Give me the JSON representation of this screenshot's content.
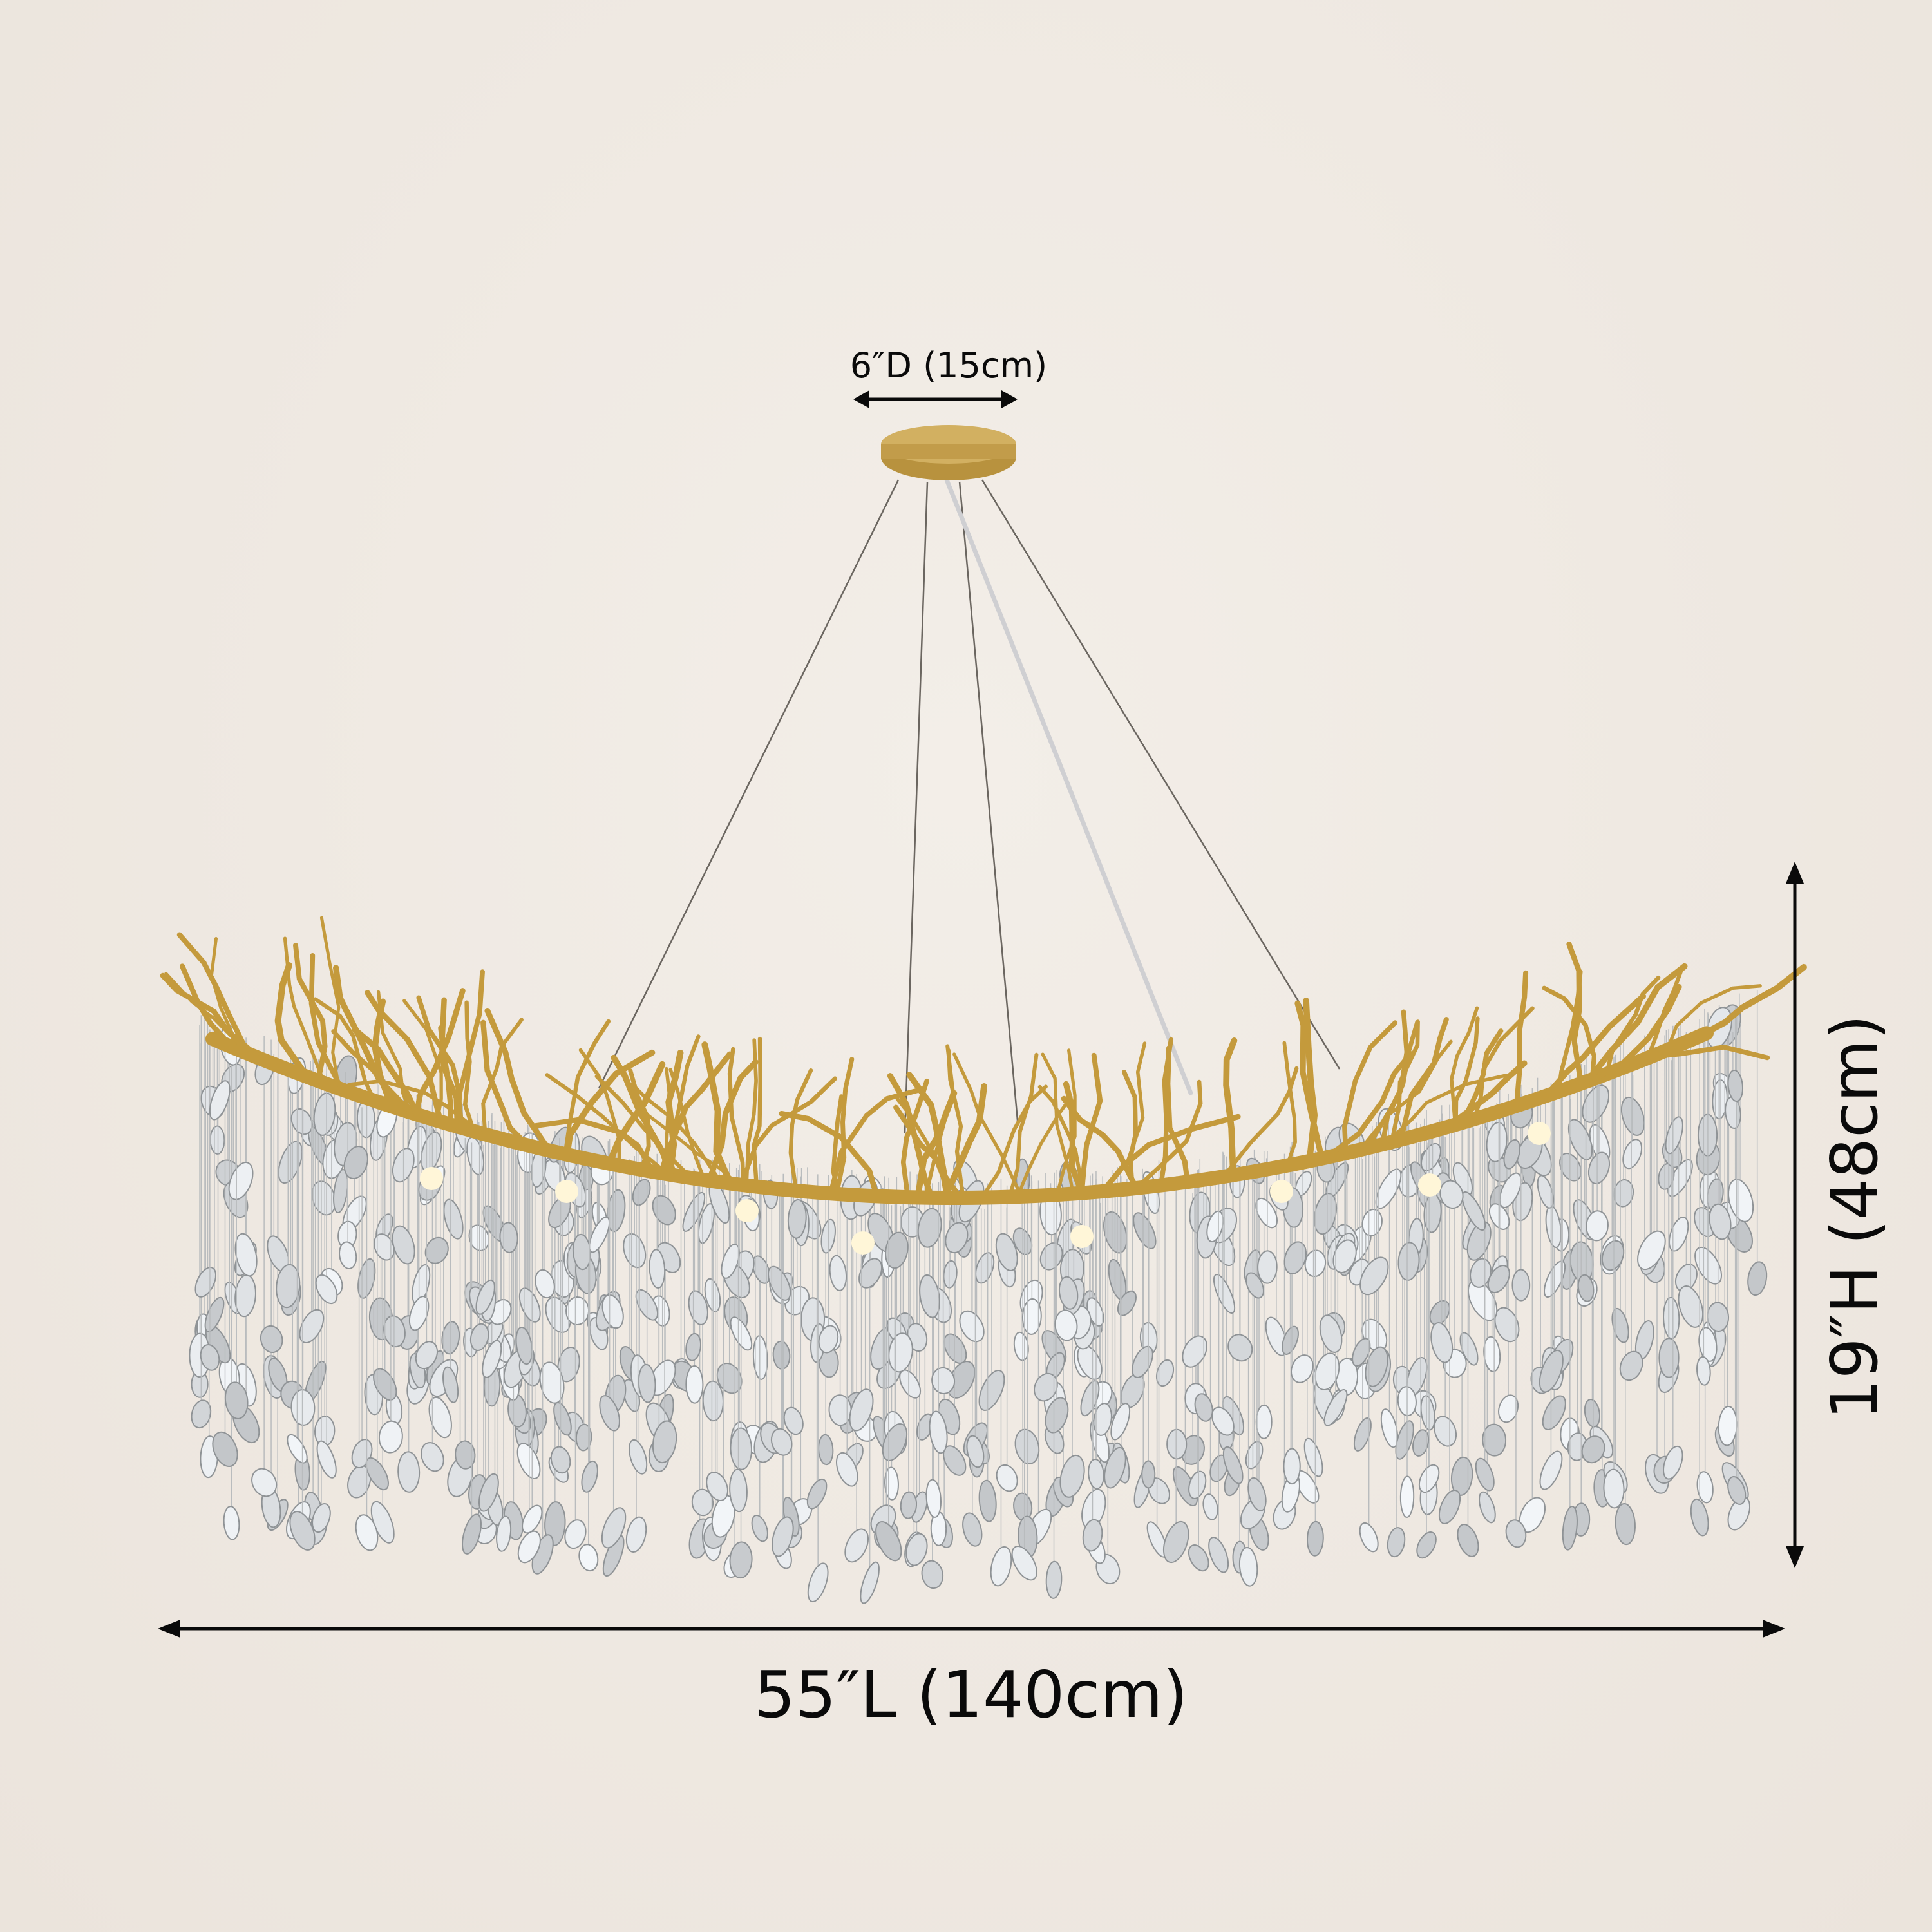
{
  "dimensions": {
    "canopy_diameter": "6″D (15cm)",
    "length": "55″L (140cm)",
    "height": "19″H (48cm)"
  },
  "colors": {
    "background": "#efe9e3",
    "gold": "#c9a24a",
    "crystal": "#d9dde0",
    "annotation": "#0a0a0a"
  }
}
